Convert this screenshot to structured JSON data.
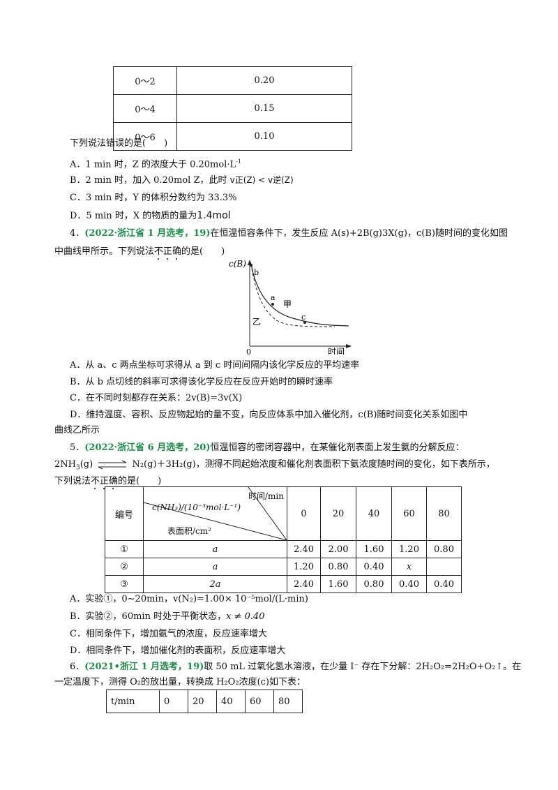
{
  "table1": {
    "rows": [
      {
        "range": "0～2",
        "value": "0.20"
      },
      {
        "range": "0～4",
        "value": "0.15"
      },
      {
        "range": "0～6",
        "value": "0.10"
      }
    ]
  },
  "q3": {
    "stem": "下列说法错误的是(　　)",
    "A": "A．1 min 时，Z 的浓度大于 0.20mol·L",
    "A_sup": "-1",
    "B_pre": "B．2 min 时，加入 0.20mol Z，此时 ",
    "B_formula": "v正(Z) < v逆(Z)",
    "C": "C．3 min 时，Y 的体积分数约为 33.3%",
    "D_pre": "D．5 min 时，X 的物质的量为",
    "D_val": "1.4mol"
  },
  "q4": {
    "num": "4．",
    "source": "(2022·浙江省 1 月选考，19)",
    "text1": "在恒温恒容条件下，发生反应 A(s)+2B(g)3X(g)，c(B)随时间的变化如图",
    "text2_pre": "中曲线甲所示。下列说法",
    "text2_emph": "不正确",
    "text2_post": "的是(　　)",
    "graph": {
      "ylabel": "c(B)",
      "xlabel": "时间",
      "origin": "0",
      "labels": {
        "b": "b",
        "a": "a",
        "c": "c",
        "jia": "甲",
        "yi": "乙"
      }
    },
    "A": "A．从 a、c 两点坐标可求得从 a 到 c 时间间隔内该化学反应的平均速率",
    "B": "B．从 b 点切线的斜率可求得该化学反应在反应开始时的瞬时速率",
    "C": "C．在不同时刻都存在关系：2v(B)=3v(X)",
    "D1": "D．维持温度、容积、反应物起始的量不变，向反应体系中加入催化剂，c(B)随时间变化关系如图中",
    "D2": "曲线乙所示"
  },
  "q5": {
    "num": "5．",
    "source": "(2022·浙江省 6 月选考，20)",
    "text1": "恒温恒容的密闭容器中，在某催化剂表面上发生氨的分解反应：",
    "eq_left": "2NH",
    "eq_right": " N₂(g)＋3H₂(g)，测得不同起始浓度和催化剂表面积下氨浓度随时间的变化，如下表所示，",
    "text3_pre": "下列说法",
    "text3_emph": "不正确",
    "text3_post": "的是(　　)",
    "table": {
      "h_num": "编号",
      "h_time": "时间/min",
      "h_conc": "c(NH₃)/(10⁻³mol·L⁻¹)",
      "h_area": "表面积/cm²",
      "times": [
        "0",
        "20",
        "40",
        "60",
        "80"
      ],
      "rows": [
        {
          "no": "①",
          "area": "a",
          "vals": [
            "2.40",
            "2.00",
            "1.60",
            "1.20",
            "0.80"
          ]
        },
        {
          "no": "②",
          "area": "a",
          "vals": [
            "1.20",
            "0.80",
            "0.40",
            "x",
            ""
          ]
        },
        {
          "no": "③",
          "area": "2a",
          "vals": [
            "2.40",
            "1.60",
            "0.80",
            "0.40",
            "0.40"
          ]
        }
      ]
    },
    "A": "A．实验①，0~20min，v(N₂)=1.00× 10⁻⁵mol/(L·min)",
    "B_pre": "B．实验②，60min 时处于平衡状态，",
    "B_formula": "x ≠ 0.40",
    "C": "C．相同条件下，增加氨气的浓度，反应速率增大",
    "D": "D．相同条件下，增加催化剂的表面积，反应速率增大"
  },
  "q6": {
    "num": "6．",
    "source": "(2021•浙江 1 月选考，19)",
    "text1": "取 50 mL 过氧化氢水溶液，在少量 I⁻ 存在下分解：2H₂O₂=2H₂O+O₂↑。在",
    "text2": "一定温度下，测得 O₂的放出量，转换成 H₂O₂浓度(c)如下表：",
    "table": [
      "t/min",
      "0",
      "20",
      "40",
      "60",
      "80"
    ]
  }
}
